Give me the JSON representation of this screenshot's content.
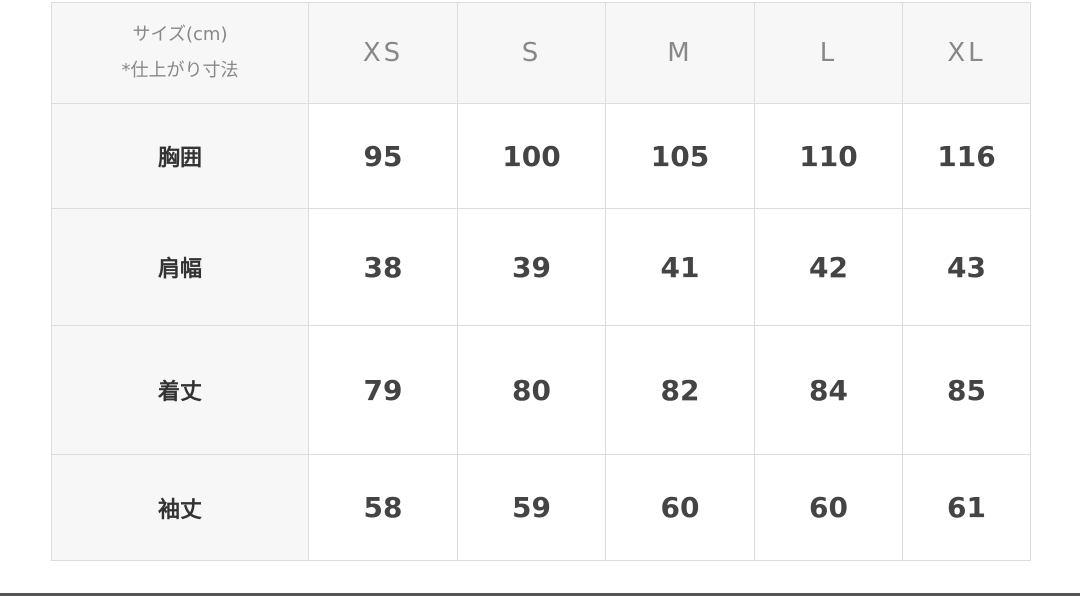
{
  "corner": {
    "line1": "サイズ(cm)",
    "line2": "*仕上がり寸法"
  },
  "sizes": [
    "XS",
    "S",
    "M",
    "L",
    "XL"
  ],
  "rows": [
    {
      "label": "胸囲",
      "values": [
        "95",
        "100",
        "105",
        "110",
        "116"
      ]
    },
    {
      "label": "肩幅",
      "values": [
        "38",
        "39",
        "41",
        "42",
        "43"
      ]
    },
    {
      "label": "着丈",
      "values": [
        "79",
        "80",
        "82",
        "84",
        "85"
      ]
    },
    {
      "label": "袖丈",
      "values": [
        "58",
        "59",
        "60",
        "60",
        "61"
      ]
    }
  ]
}
